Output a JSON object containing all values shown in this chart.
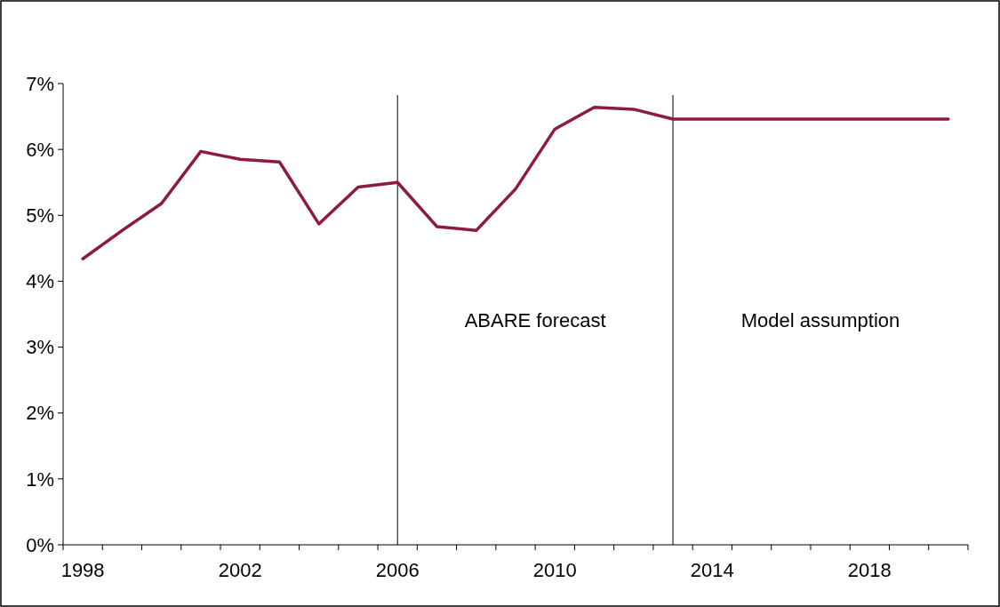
{
  "chart_data": {
    "type": "line",
    "categories": [
      "1998",
      null,
      null,
      null,
      "2002",
      null,
      null,
      null,
      "2006",
      null,
      null,
      null,
      "2010",
      null,
      null,
      null,
      "2014",
      null,
      null,
      null,
      "2018",
      null,
      null
    ],
    "series": [
      {
        "color": "#8e1b3e",
        "values": [
          4.34,
          4.77,
          5.18,
          5.97,
          5.85,
          5.81,
          4.87,
          5.43,
          5.5,
          4.83,
          4.77,
          5.4,
          6.31,
          6.64,
          6.61,
          6.46,
          6.46,
          6.46,
          6.46,
          6.46,
          6.46,
          6.46,
          6.46
        ]
      }
    ],
    "ylim": [
      0,
      7
    ],
    "yticks": [
      {
        "value": 0,
        "label": "0%"
      },
      {
        "value": 1,
        "label": "1%"
      },
      {
        "value": 2,
        "label": "2%"
      },
      {
        "value": 3,
        "label": "3%"
      },
      {
        "value": 4,
        "label": "4%"
      },
      {
        "value": 5,
        "label": "5%"
      },
      {
        "value": 6,
        "label": "6%"
      },
      {
        "value": 7,
        "label": "7%"
      }
    ],
    "annotations": [
      "ABARE forecast",
      "Model assumption"
    ],
    "grid": false,
    "marker": "none",
    "line_style": "solid"
  }
}
